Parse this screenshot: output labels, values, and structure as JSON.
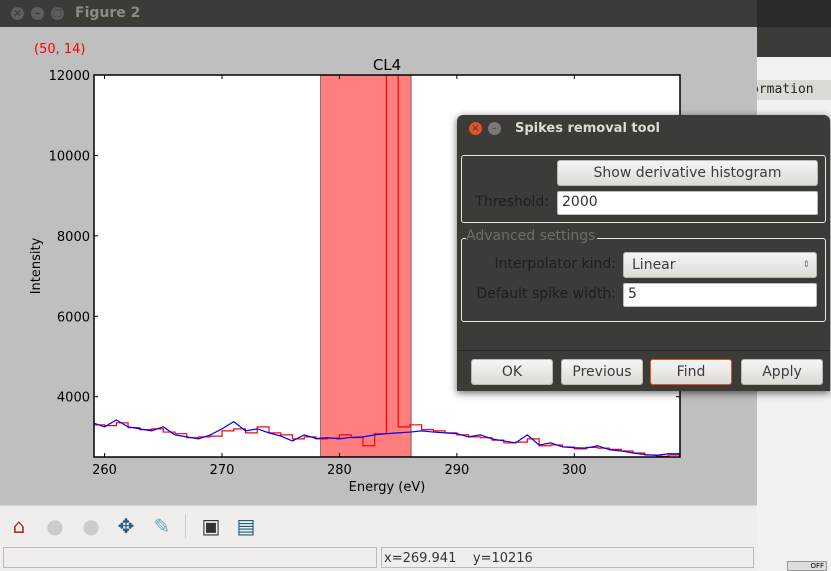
{
  "window": {
    "title": "Figure 2"
  },
  "figure": {
    "pick_label": "(50, 14)"
  },
  "background_window": {
    "text": "ormation",
    "toggle": "OFF"
  },
  "chart_data": {
    "type": "line",
    "title": "CL4",
    "xlabel": "Energy (eV)",
    "ylabel": "Intensity",
    "xlim": [
      259.1,
      309
    ],
    "ylim": [
      2500,
      12000
    ],
    "xticks": [
      260,
      270,
      280,
      290,
      300
    ],
    "yticks": [
      4000,
      6000,
      8000,
      10000,
      12000
    ],
    "span": {
      "x0": 278.4,
      "x1": 286.1,
      "color": "#ff7f7f"
    },
    "x": [
      259,
      260,
      261,
      262,
      263,
      264,
      265,
      266,
      267,
      268,
      269,
      270,
      271,
      272,
      273,
      274,
      275,
      276,
      277,
      278,
      279,
      280,
      281,
      282,
      283,
      284,
      284.5,
      285,
      286,
      287,
      288,
      289,
      290,
      291,
      292,
      293,
      294,
      295,
      296,
      297,
      298,
      299,
      300,
      301,
      302,
      303,
      304,
      305,
      306,
      307,
      308,
      309
    ],
    "series": [
      {
        "color": "#ff0000",
        "step": true,
        "values": [
          3300,
          3280,
          3350,
          3230,
          3180,
          3200,
          3120,
          3080,
          2980,
          3000,
          3020,
          3150,
          3200,
          3100,
          3250,
          3100,
          3050,
          2950,
          3000,
          2950,
          2970,
          3050,
          2980,
          2780,
          3080,
          12500,
          12500,
          3250,
          3300,
          3180,
          3150,
          3100,
          3050,
          3000,
          2980,
          2920,
          2850,
          2870,
          2950,
          2780,
          2800,
          2750,
          2700,
          2740,
          2720,
          2690,
          2650,
          2600,
          2550,
          2520,
          2550,
          2560
        ]
      },
      {
        "color": "#0000ff",
        "step": false,
        "values": [
          3350,
          3250,
          3420,
          3250,
          3200,
          3150,
          3250,
          3050,
          3000,
          2950,
          3050,
          3200,
          3380,
          3150,
          3200,
          3100,
          3020,
          2900,
          3050,
          2960,
          2980,
          2950,
          2990,
          3000,
          3050,
          3080,
          3090,
          3100,
          3120,
          3150,
          3120,
          3100,
          3080,
          3000,
          3050,
          2950,
          2900,
          2850,
          3050,
          2800,
          2850,
          2750,
          2730,
          2720,
          2780,
          2680,
          2650,
          2600,
          2560,
          2540,
          2580,
          2580
        ]
      }
    ]
  },
  "toolbar": {
    "items": [
      "home-icon",
      "back-icon",
      "forward-icon",
      "pan-icon",
      "zoom-icon",
      "subplots-icon",
      "save-icon"
    ]
  },
  "status": {
    "left": "",
    "x": "x=269.941",
    "y": "y=10216"
  },
  "dialog": {
    "title": "Spikes removal tool",
    "show_histogram": "Show derivative histogram",
    "threshold_label": "Threshold:",
    "threshold_value": "2000",
    "advanced_title": "Advanced settings",
    "interp_label": "Interpolator kind:",
    "interp_value": "Linear",
    "width_label": "Default spike width:",
    "width_value": "5",
    "ok": "OK",
    "previous": "Previous",
    "find": "Find",
    "apply": "Apply"
  }
}
